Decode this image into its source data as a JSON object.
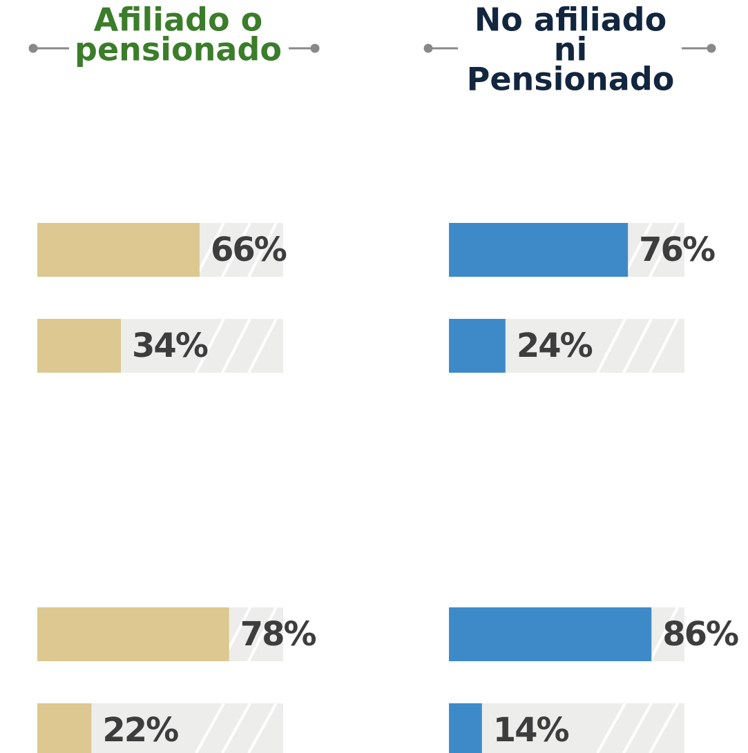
{
  "chart_data": [
    {
      "type": "bar",
      "title_lines": [
        "Afiliado o",
        "pensionado"
      ],
      "title_color": "#3b7d2a",
      "color": "#dcc890",
      "xlim": [
        0,
        100
      ],
      "values": [
        66,
        34,
        78,
        22
      ],
      "value_labels": [
        "66%",
        "34%",
        "78%",
        "22%"
      ]
    },
    {
      "type": "bar",
      "title_lines": [
        "No afiliado",
        "ni",
        "Pensionado"
      ],
      "title_color": "#13263f",
      "color": "#3e8ac9",
      "xlim": [
        0,
        100
      ],
      "values": [
        76,
        24,
        86,
        14
      ],
      "value_labels": [
        "76%",
        "24%",
        "86%",
        "14%"
      ]
    }
  ]
}
